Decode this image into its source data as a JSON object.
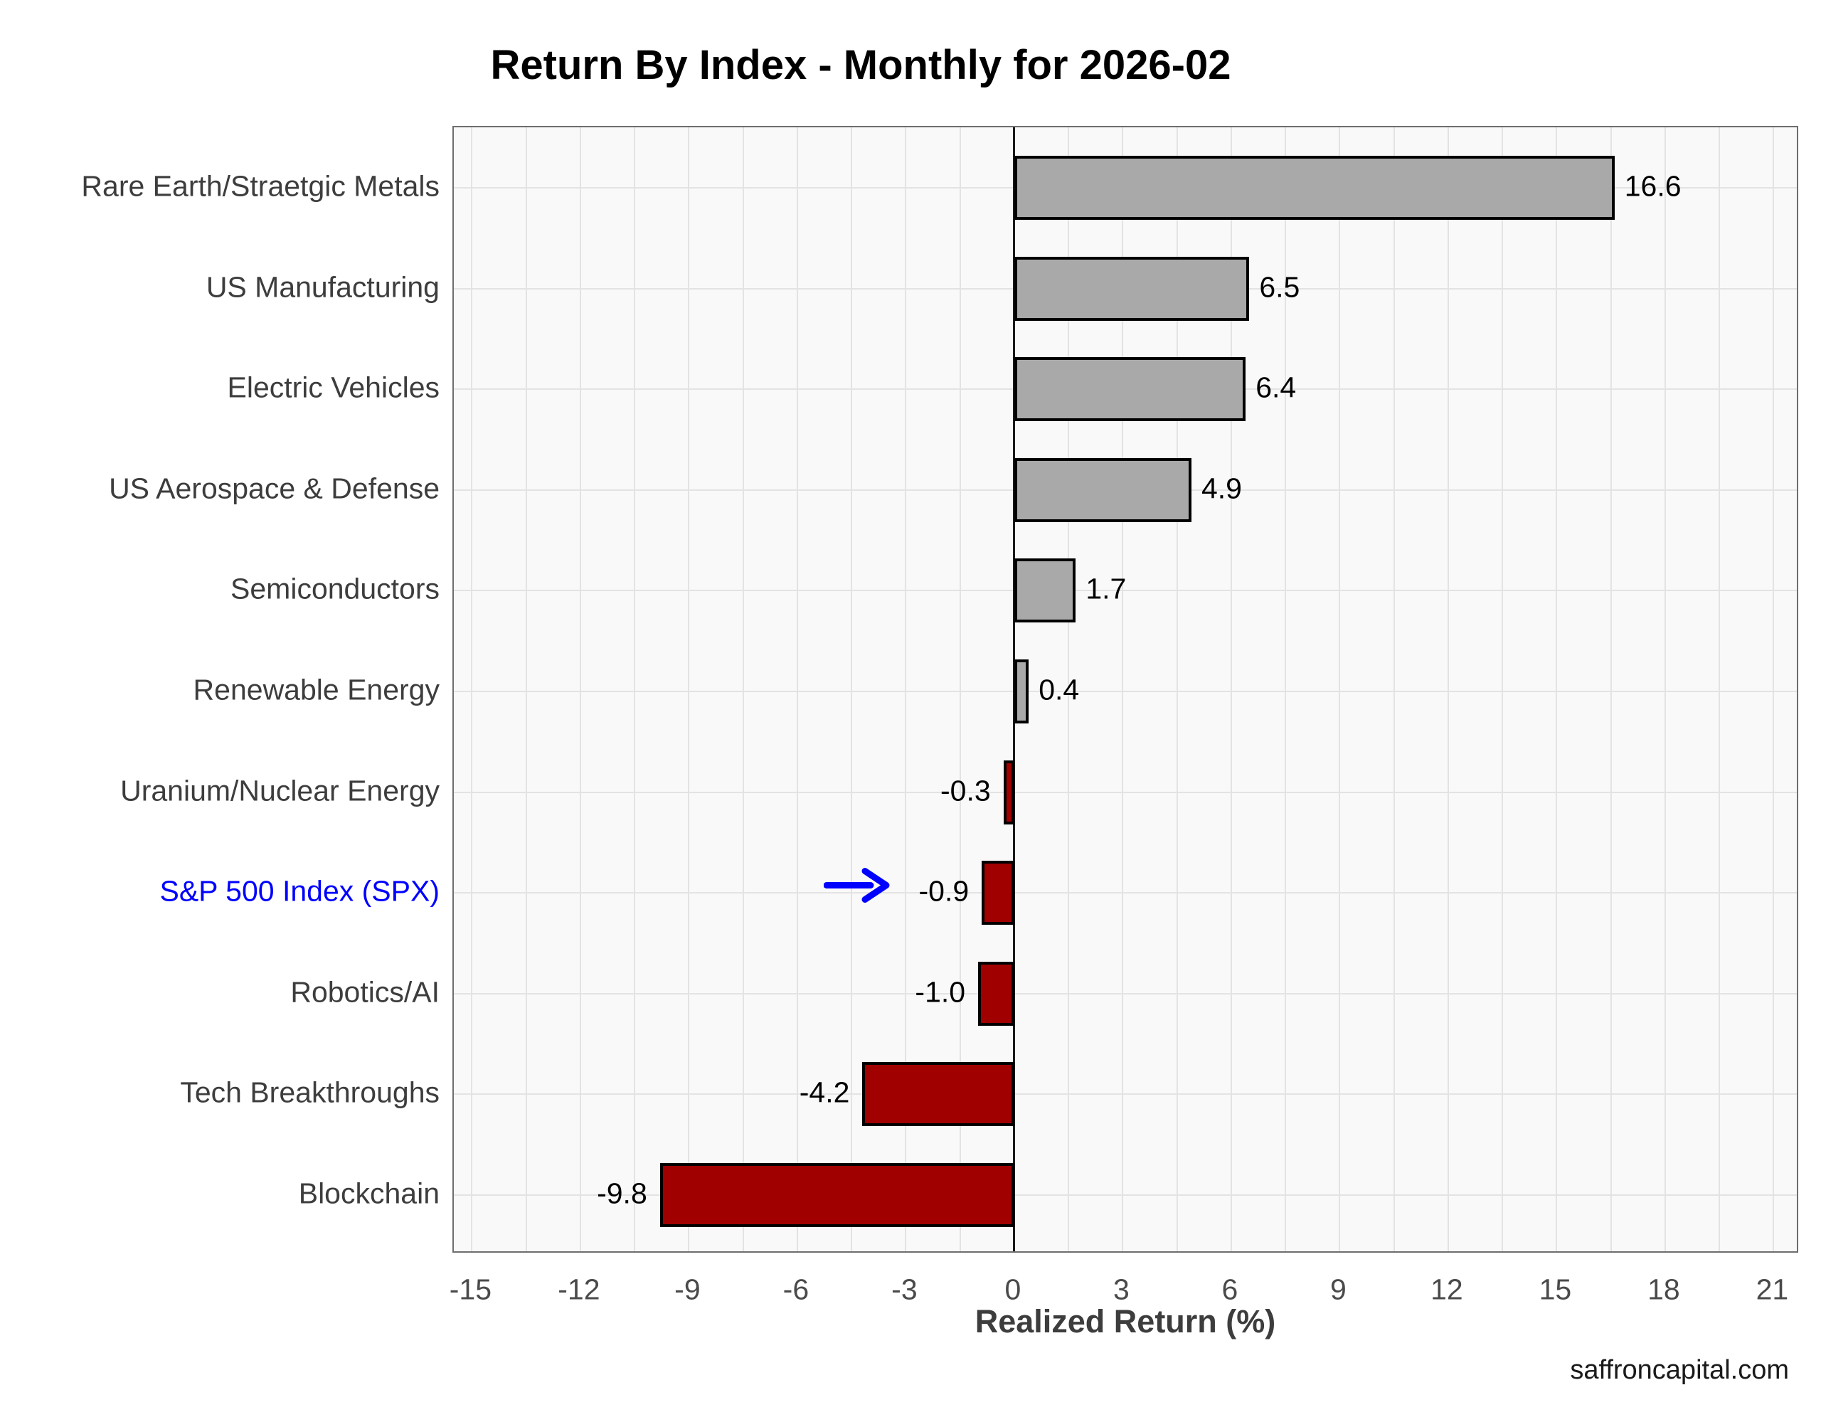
{
  "chart_data": {
    "type": "bar",
    "orientation": "horizontal",
    "title": "Return By Index - Monthly for 2026-02",
    "xlabel": "Realized Return (%)",
    "footer": "saffroncapital.com",
    "categories": [
      "Rare Earth/Straetgic Metals",
      "US Manufacturing",
      "Electric Vehicles",
      "US Aerospace & Defense",
      "Semiconductors",
      "Renewable Energy",
      "Uranium/Nuclear Energy",
      "S&P 500 Index (SPX)",
      "Robotics/AI",
      "Tech Breakthroughs",
      "Blockchain"
    ],
    "values": [
      16.6,
      6.5,
      6.4,
      4.9,
      1.7,
      0.4,
      -0.3,
      -0.9,
      -1.0,
      -4.2,
      -9.8
    ],
    "value_labels": [
      "16.6",
      "6.5",
      "6.4",
      "4.9",
      "1.7",
      "0.4",
      "-0.3",
      "-0.9",
      "-1.0",
      "-4.2",
      "-9.8"
    ],
    "xticks": [
      -15,
      -12,
      -9,
      -6,
      -3,
      0,
      3,
      6,
      9,
      12,
      15,
      18,
      21
    ],
    "xlim": [
      -15.5,
      21.72
    ],
    "grid": true,
    "grid_step": 1.5,
    "positive_color": "#a9a9a9",
    "negative_color": "#a00000",
    "bar_edge_color": "#000000",
    "highlight": {
      "category": "S&P 500 Index (SPX)",
      "label_color": "#0000ff",
      "arrow_color": "#0000ff"
    }
  }
}
